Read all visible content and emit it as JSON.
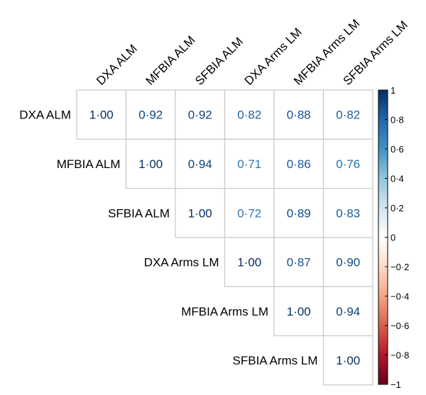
{
  "chart_data": {
    "type": "heatmap",
    "subtype": "correlation-upper-triangle",
    "title": "",
    "variables": [
      "DXA ALM",
      "MFBIA ALM",
      "SFBIA ALM",
      "DXA Arms LM",
      "MFBIA Arms LM",
      "SFBIA Arms LM"
    ],
    "matrix": [
      [
        1.0,
        0.92,
        0.92,
        0.82,
        0.88,
        0.82
      ],
      [
        null,
        1.0,
        0.94,
        0.71,
        0.86,
        0.76
      ],
      [
        null,
        null,
        1.0,
        0.72,
        0.89,
        0.83
      ],
      [
        null,
        null,
        null,
        1.0,
        0.87,
        0.9
      ],
      [
        null,
        null,
        null,
        null,
        1.0,
        0.94
      ],
      [
        null,
        null,
        null,
        null,
        null,
        1.0
      ]
    ],
    "value_decimal_separator": "·",
    "colorbar": {
      "range": [
        -1,
        1
      ],
      "ticks": [
        "1",
        "0·8",
        "0·6",
        "0·4",
        "0·2",
        "0",
        "−0·2",
        "−0·4",
        "−0·6",
        "−0·8",
        "−1"
      ],
      "tick_values": [
        1,
        0.8,
        0.6,
        0.4,
        0.2,
        0,
        -0.2,
        -0.4,
        -0.6,
        -0.8,
        -1
      ],
      "colors": {
        "negative_end": "#67001F",
        "neutral": "#FFFFFF",
        "positive_end": "#053061"
      }
    },
    "grid": true,
    "grid_color": "#c8c8c8"
  }
}
